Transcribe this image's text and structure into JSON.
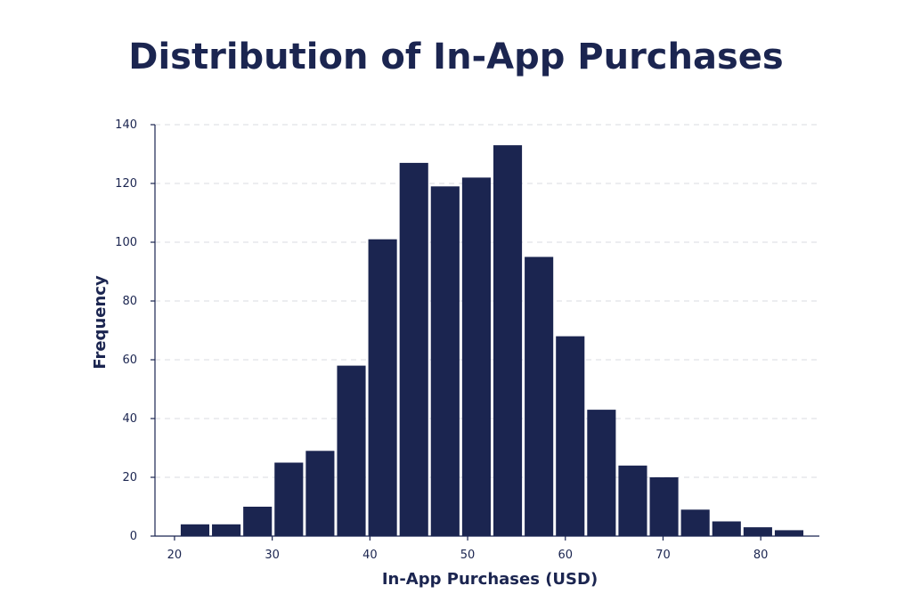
{
  "chart_data": {
    "type": "bar",
    "title": "Distribution of In-App Purchases",
    "xlabel": "In-App Purchases (USD)",
    "ylabel": "Frequency",
    "xlim": [
      18,
      86
    ],
    "ylim": [
      0,
      140
    ],
    "xticks": [
      20,
      30,
      40,
      50,
      60,
      70,
      80
    ],
    "yticks": [
      0,
      20,
      40,
      60,
      80,
      100,
      120,
      140
    ],
    "grid": true,
    "bar_color": "#1b2550",
    "bins": [
      {
        "start": 20.5,
        "end": 23.7,
        "value": 4
      },
      {
        "start": 23.7,
        "end": 26.9,
        "value": 4
      },
      {
        "start": 26.9,
        "end": 30.1,
        "value": 10
      },
      {
        "start": 30.1,
        "end": 33.3,
        "value": 25
      },
      {
        "start": 33.3,
        "end": 36.5,
        "value": 29
      },
      {
        "start": 36.5,
        "end": 39.7,
        "value": 58
      },
      {
        "start": 39.7,
        "end": 42.9,
        "value": 101
      },
      {
        "start": 42.9,
        "end": 46.1,
        "value": 127
      },
      {
        "start": 46.1,
        "end": 49.3,
        "value": 119
      },
      {
        "start": 49.3,
        "end": 52.5,
        "value": 122
      },
      {
        "start": 52.5,
        "end": 55.7,
        "value": 133
      },
      {
        "start": 55.7,
        "end": 58.9,
        "value": 95
      },
      {
        "start": 58.9,
        "end": 62.1,
        "value": 68
      },
      {
        "start": 62.1,
        "end": 65.3,
        "value": 43
      },
      {
        "start": 65.3,
        "end": 68.5,
        "value": 24
      },
      {
        "start": 68.5,
        "end": 71.7,
        "value": 20
      },
      {
        "start": 71.7,
        "end": 74.9,
        "value": 9
      },
      {
        "start": 74.9,
        "end": 78.1,
        "value": 5
      },
      {
        "start": 78.1,
        "end": 81.3,
        "value": 3
      },
      {
        "start": 81.3,
        "end": 84.5,
        "value": 2
      }
    ]
  }
}
